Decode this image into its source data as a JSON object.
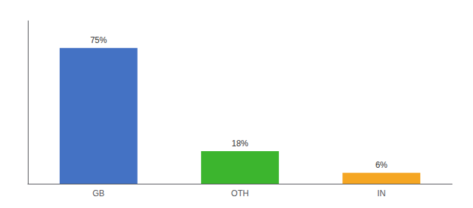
{
  "chart_data": {
    "type": "bar",
    "categories": [
      "GB",
      "OTH",
      "IN"
    ],
    "values": [
      75,
      18,
      6
    ],
    "value_labels": [
      "75%",
      "18%",
      "6%"
    ],
    "colors": [
      "#4472c4",
      "#3cb52e",
      "#f5a623"
    ],
    "ylim": [
      0,
      90
    ],
    "data_labels": true,
    "tick_labels": "x",
    "grid": false
  }
}
